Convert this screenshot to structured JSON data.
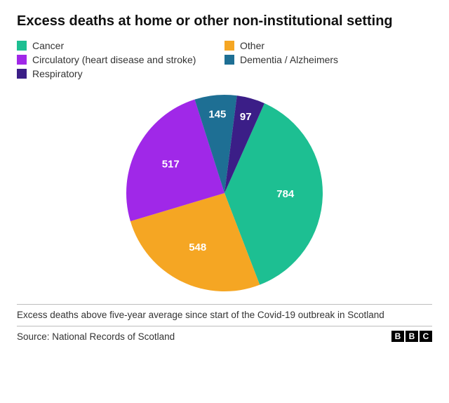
{
  "title": "Excess deaths at home or other non-institutional setting",
  "subtitle": "Excess deaths above five-year average since start of the Covid-19 outbreak in Scotland",
  "source": "Source: National Records of Scotland",
  "logo": {
    "letters": [
      "B",
      "B",
      "C"
    ]
  },
  "chart": {
    "type": "pie",
    "radius": 140,
    "start_angle_deg": 24,
    "background_color": "#ffffff",
    "label_fontsize": 15,
    "label_color": "#ffffff",
    "label_fontweight": "bold",
    "slices": [
      {
        "key": "cancer",
        "label": "Cancer",
        "value": 784,
        "color": "#1dbf92"
      },
      {
        "key": "other",
        "label": "Other",
        "value": 548,
        "color": "#f5a623"
      },
      {
        "key": "circulatory",
        "label": "Circulatory (heart disease and stroke)",
        "value": 517,
        "color": "#a028e8"
      },
      {
        "key": "dementia",
        "label": "Dementia / Alzheimers",
        "value": 145,
        "color": "#1e6f94"
      },
      {
        "key": "respiratory",
        "label": "Respiratory",
        "value": 97,
        "color": "#3b1e87"
      }
    ]
  },
  "legend": {
    "order": [
      "cancer",
      "other",
      "circulatory",
      "dementia",
      "respiratory"
    ],
    "swatch_size": 14,
    "fontsize": 14,
    "color": "#333333"
  }
}
